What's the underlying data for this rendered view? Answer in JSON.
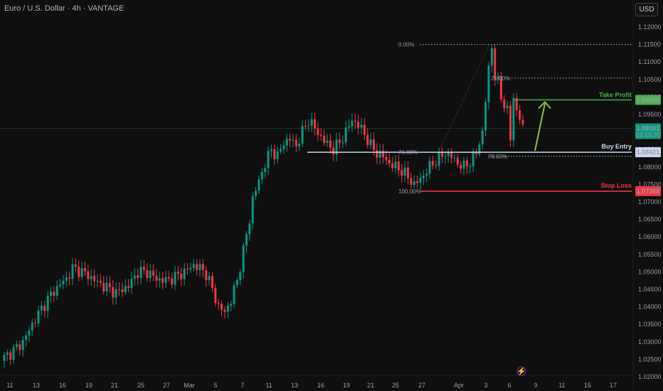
{
  "header": {
    "title": "Euro / U.S. Dollar · 4h · VANTAGE",
    "currency_button": "USD"
  },
  "chart_data": {
    "type": "candlestick",
    "title": "Euro / U.S. Dollar · 4h · VANTAGE",
    "ylim": [
      1.02,
      1.1225
    ],
    "y_ticks": [
      "1.12000",
      "1.11500",
      "1.11000",
      "1.10500",
      "1.10000",
      "1.09500",
      "1.09000",
      "1.08500",
      "1.08000",
      "1.07500",
      "1.07000",
      "1.06500",
      "1.06000",
      "1.05500",
      "1.05000",
      "1.04500",
      "1.04000",
      "1.03500",
      "1.03000",
      "1.02500",
      "1.02000"
    ],
    "x_ticks": [
      "11",
      "13",
      "16",
      "19",
      "21",
      "25",
      "27",
      "Mar",
      "5",
      "7",
      "11",
      "13",
      "16",
      "19",
      "21",
      "25",
      "27",
      "Apr",
      "3",
      "6",
      "9",
      "11",
      "15",
      "17"
    ],
    "close_path": [
      [
        0,
        1.0255
      ],
      [
        3,
        1.0275
      ],
      [
        6,
        1.03
      ],
      [
        9,
        1.035
      ],
      [
        12,
        1.0395
      ],
      [
        15,
        1.0435
      ],
      [
        18,
        1.0465
      ],
      [
        20,
        1.048
      ],
      [
        22,
        1.051
      ],
      [
        24,
        1.0505
      ],
      [
        27,
        1.049
      ],
      [
        30,
        1.047
      ],
      [
        33,
        1.0455
      ],
      [
        36,
        1.044
      ],
      [
        40,
        1.046
      ],
      [
        43,
        1.05
      ],
      [
        46,
        1.05
      ],
      [
        49,
        1.048
      ],
      [
        52,
        1.0475
      ],
      [
        55,
        1.0485
      ],
      [
        58,
        1.05
      ],
      [
        61,
        1.052
      ],
      [
        63,
        1.051
      ],
      [
        65,
        1.0495
      ],
      [
        67,
        1.045
      ],
      [
        69,
        1.04
      ],
      [
        71,
        1.0385
      ],
      [
        73,
        1.042
      ],
      [
        75,
        1.0475
      ],
      [
        77,
        1.056
      ],
      [
        79,
        1.065
      ],
      [
        80,
        1.071
      ],
      [
        82,
        1.076
      ],
      [
        84,
        1.081
      ],
      [
        86,
        1.085
      ],
      [
        88,
        1.083
      ],
      [
        90,
        1.087
      ],
      [
        92,
        1.088
      ],
      [
        94,
        1.086
      ],
      [
        96,
        1.09
      ],
      [
        98,
        1.0935
      ],
      [
        100,
        1.091
      ],
      [
        102,
        1.0885
      ],
      [
        104,
        1.0865
      ],
      [
        106,
        1.085
      ],
      [
        108,
        1.087
      ],
      [
        110,
        1.09
      ],
      [
        112,
        1.0935
      ],
      [
        114,
        1.092
      ],
      [
        116,
        1.0895
      ],
      [
        118,
        1.086
      ],
      [
        120,
        1.084
      ],
      [
        122,
        1.083
      ],
      [
        124,
        1.081
      ],
      [
        126,
        1.08
      ],
      [
        128,
        1.079
      ],
      [
        130,
        1.077
      ],
      [
        132,
        1.075
      ],
      [
        134,
        1.0765
      ],
      [
        136,
        1.079
      ],
      [
        138,
        1.081
      ],
      [
        140,
        1.0825
      ],
      [
        142,
        1.084
      ],
      [
        144,
        1.083
      ],
      [
        146,
        1.081
      ],
      [
        148,
        1.08
      ],
      [
        150,
        1.0815
      ],
      [
        152,
        1.084
      ],
      [
        154,
        1.09
      ],
      [
        155,
        1.099
      ],
      [
        156,
        1.108
      ],
      [
        157,
        1.1145
      ],
      [
        158,
        1.106
      ],
      [
        159,
        1.104
      ],
      [
        160,
        1.1
      ],
      [
        161,
        1.098
      ],
      [
        162,
        1.096
      ],
      [
        163,
        1.088
      ],
      [
        164,
        1.1
      ],
      [
        165,
        1.096
      ],
      [
        166,
        1.094
      ],
      [
        167,
        1.091
      ]
    ],
    "fibonacci": [
      {
        "label": "0.00%",
        "price": 1.115
      },
      {
        "label": "21.00%",
        "price": 1.1054
      },
      {
        "label": "71.00%",
        "price": 1.0842
      },
      {
        "label": "78.60%",
        "price": 1.083
      },
      {
        "label": "100.00%",
        "price": 1.073
      }
    ],
    "levels": {
      "take_profit": {
        "label": "Take Profit",
        "price": 1.09916,
        "tag": "1.09916",
        "color": "#4caf50"
      },
      "buy_entry": {
        "label": "Buy Entry",
        "price": 1.08421,
        "tag": "1.08421",
        "color": "#c8d7f0"
      },
      "stop_loss": {
        "label": "Stop Loss",
        "price": 1.07308,
        "tag": "1.07308",
        "color": "#f23645"
      },
      "current": {
        "price": 1.09101,
        "tag": "1.09101",
        "countdown": "02:19:20",
        "color": "#089981"
      }
    },
    "colors": {
      "up": "#089981",
      "down": "#f23645",
      "background": "#0f0f0f",
      "arrow": "#8bc34a"
    }
  }
}
